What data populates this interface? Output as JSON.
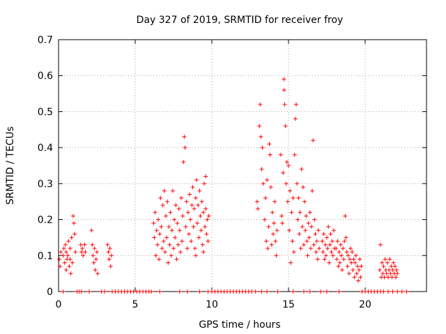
{
  "chart_data": {
    "type": "scatter",
    "title": "Day 327 of 2019, SRMTID for receiver froy",
    "xlabel": "GPS time / hours",
    "ylabel": "SRMTID / TECUs",
    "xlim": [
      0,
      24
    ],
    "ylim": [
      0,
      0.7
    ],
    "xticks": [
      0,
      5,
      10,
      15,
      20
    ],
    "xtick_labels": [
      "0",
      "5",
      "10",
      "15",
      "20"
    ],
    "yticks": [
      0,
      0.1,
      0.2,
      0.3,
      0.4,
      0.5,
      0.6,
      0.7
    ],
    "ytick_labels": [
      "0",
      "0.1",
      "0.2",
      "0.3",
      "0.4",
      "0.5",
      "0.6",
      "0.7"
    ],
    "grid": true,
    "marker": "+",
    "series": [
      {
        "name": "SRMTID",
        "color": "#ff0000",
        "points": [
          [
            0.05,
            0.09
          ],
          [
            0.1,
            0.07
          ],
          [
            0.15,
            0.11
          ],
          [
            0.3,
            0.1
          ],
          [
            0.35,
            0.12
          ],
          [
            0.4,
            0.08
          ],
          [
            0.45,
            0.13
          ],
          [
            0.5,
            0.11
          ],
          [
            0.55,
            0.09
          ],
          [
            0.6,
            0.1
          ],
          [
            0.65,
            0.14
          ],
          [
            0.7,
            0.07
          ],
          [
            0.75,
            0.12
          ],
          [
            0.8,
            0.05
          ],
          [
            0.85,
            0.15
          ],
          [
            0.9,
            0.08
          ],
          [
            0.95,
            0.21
          ],
          [
            1.0,
            0.19
          ],
          [
            1.05,
            0.16
          ],
          [
            1.1,
            0.11
          ],
          [
            0.5,
            0.06
          ],
          [
            0.75,
            0.09
          ],
          [
            1.45,
            0.13
          ],
          [
            1.5,
            0.11
          ],
          [
            1.55,
            0.12
          ],
          [
            1.6,
            0.1
          ],
          [
            1.7,
            0.13
          ],
          [
            1.75,
            0.11
          ],
          [
            2.15,
            0.17
          ],
          [
            2.2,
            0.13
          ],
          [
            2.25,
            0.1
          ],
          [
            2.3,
            0.08
          ],
          [
            2.35,
            0.12
          ],
          [
            2.4,
            0.06
          ],
          [
            2.45,
            0.09
          ],
          [
            2.5,
            0.11
          ],
          [
            2.55,
            0.05
          ],
          [
            3.2,
            0.13
          ],
          [
            3.25,
            0.11
          ],
          [
            3.3,
            0.09
          ],
          [
            3.35,
            0.12
          ],
          [
            3.4,
            0.07
          ],
          [
            3.45,
            0.1
          ],
          [
            6.2,
            0.19
          ],
          [
            6.25,
            0.15
          ],
          [
            6.3,
            0.22
          ],
          [
            6.35,
            0.1
          ],
          [
            6.4,
            0.17
          ],
          [
            6.45,
            0.13
          ],
          [
            6.5,
            0.2
          ],
          [
            6.55,
            0.09
          ],
          [
            6.6,
            0.16
          ],
          [
            6.65,
            0.26
          ],
          [
            6.7,
            0.18
          ],
          [
            6.75,
            0.12
          ],
          [
            6.8,
            0.24
          ],
          [
            6.85,
            0.14
          ],
          [
            6.9,
            0.28
          ],
          [
            6.95,
            0.11
          ],
          [
            7.0,
            0.21
          ],
          [
            7.05,
            0.15
          ],
          [
            7.1,
            0.25
          ],
          [
            7.15,
            0.08
          ],
          [
            7.2,
            0.18
          ],
          [
            7.25,
            0.13
          ],
          [
            7.3,
            0.22
          ],
          [
            7.35,
            0.1
          ],
          [
            7.4,
            0.17
          ],
          [
            7.45,
            0.28
          ],
          [
            7.5,
            0.12
          ],
          [
            7.55,
            0.2
          ],
          [
            7.6,
            0.15
          ],
          [
            7.65,
            0.24
          ],
          [
            7.7,
            0.09
          ],
          [
            7.75,
            0.19
          ],
          [
            7.8,
            0.13
          ],
          [
            7.85,
            0.23
          ],
          [
            7.9,
            0.17
          ],
          [
            7.95,
            0.11
          ],
          [
            8.0,
            0.26
          ],
          [
            8.05,
            0.14
          ],
          [
            8.1,
            0.21
          ],
          [
            8.15,
            0.36
          ],
          [
            8.2,
            0.43
          ],
          [
            8.25,
            0.4
          ],
          [
            8.3,
            0.18
          ],
          [
            8.35,
            0.25
          ],
          [
            8.4,
            0.12
          ],
          [
            8.45,
            0.22
          ],
          [
            8.5,
            0.16
          ],
          [
            8.55,
            0.27
          ],
          [
            8.6,
            0.2
          ],
          [
            8.65,
            0.14
          ],
          [
            8.7,
            0.24
          ],
          [
            8.75,
            0.29
          ],
          [
            8.8,
            0.18
          ],
          [
            8.85,
            0.23
          ],
          [
            8.9,
            0.12
          ],
          [
            8.95,
            0.26
          ],
          [
            9.0,
            0.31
          ],
          [
            9.05,
            0.19
          ],
          [
            9.1,
            0.24
          ],
          [
            9.15,
            0.15
          ],
          [
            9.2,
            0.28
          ],
          [
            9.25,
            0.21
          ],
          [
            9.3,
            0.17
          ],
          [
            9.35,
            0.25
          ],
          [
            9.4,
            0.13
          ],
          [
            9.45,
            0.22
          ],
          [
            9.5,
            0.3
          ],
          [
            9.55,
            0.18
          ],
          [
            9.6,
            0.23
          ],
          [
            9.65,
            0.16
          ],
          [
            9.7,
            0.2
          ],
          [
            9.75,
            0.14
          ],
          [
            9.8,
            0.21
          ],
          [
            8.95,
            0.1
          ],
          [
            9.45,
            0.11
          ],
          [
            9.6,
            0.32
          ],
          [
            12.95,
            0.25
          ],
          [
            13.0,
            0.23
          ],
          [
            13.1,
            0.46
          ],
          [
            13.15,
            0.52
          ],
          [
            13.2,
            0.43
          ],
          [
            13.25,
            0.34
          ],
          [
            13.3,
            0.4
          ],
          [
            13.35,
            0.3
          ],
          [
            13.45,
            0.2
          ],
          [
            13.5,
            0.26
          ],
          [
            13.55,
            0.14
          ],
          [
            13.6,
            0.31
          ],
          [
            13.65,
            0.12
          ],
          [
            13.7,
            0.18
          ],
          [
            13.75,
            0.41
          ],
          [
            13.8,
            0.38
          ],
          [
            13.85,
            0.29
          ],
          [
            13.9,
            0.13
          ],
          [
            13.95,
            0.22
          ],
          [
            14.0,
            0.16
          ],
          [
            14.05,
            0.19
          ],
          [
            14.1,
            0.25
          ],
          [
            14.15,
            0.14
          ],
          [
            14.2,
            0.1
          ],
          [
            14.25,
            0.17
          ],
          [
            14.5,
            0.38
          ],
          [
            14.55,
            0.21
          ],
          [
            14.6,
            0.19
          ],
          [
            14.65,
            0.33
          ],
          [
            14.7,
            0.59
          ],
          [
            14.72,
            0.56
          ],
          [
            14.75,
            0.52
          ],
          [
            14.8,
            0.46
          ],
          [
            14.85,
            0.3
          ],
          [
            14.9,
            0.36
          ],
          [
            14.95,
            0.25
          ],
          [
            15.0,
            0.35
          ],
          [
            15.05,
            0.17
          ],
          [
            15.1,
            0.28
          ],
          [
            15.15,
            0.08
          ],
          [
            15.2,
            0.22
          ],
          [
            15.25,
            0.14
          ],
          [
            15.3,
            0.26
          ],
          [
            15.35,
            0.11
          ],
          [
            15.4,
            0.38
          ],
          [
            15.45,
            0.48
          ],
          [
            15.5,
            0.52
          ],
          [
            15.55,
            0.3
          ],
          [
            15.6,
            0.2
          ],
          [
            15.65,
            0.26
          ],
          [
            15.7,
            0.16
          ],
          [
            15.75,
            0.22
          ],
          [
            15.8,
            0.12
          ],
          [
            15.85,
            0.34
          ],
          [
            15.9,
            0.18
          ],
          [
            15.95,
            0.29
          ],
          [
            16.0,
            0.13
          ],
          [
            16.05,
            0.25
          ],
          [
            16.1,
            0.17
          ],
          [
            16.15,
            0.21
          ],
          [
            16.2,
            0.14
          ],
          [
            16.25,
            0.1
          ],
          [
            16.3,
            0.19
          ],
          [
            16.35,
            0.15
          ],
          [
            16.4,
            0.22
          ],
          [
            16.45,
            0.12
          ],
          [
            16.5,
            0.18
          ],
          [
            16.55,
            0.28
          ],
          [
            16.6,
            0.42
          ],
          [
            16.65,
            0.13
          ],
          [
            16.7,
            0.2
          ],
          [
            16.75,
            0.16
          ],
          [
            16.8,
            0.11
          ],
          [
            16.85,
            0.14
          ],
          [
            16.9,
            0.09
          ],
          [
            16.95,
            0.17
          ],
          [
            17.0,
            0.12
          ],
          [
            17.2,
            0.14
          ],
          [
            17.25,
            0.11
          ],
          [
            17.3,
            0.16
          ],
          [
            17.35,
            0.09
          ],
          [
            17.4,
            0.13
          ],
          [
            17.45,
            0.1
          ],
          [
            17.5,
            0.15
          ],
          [
            17.55,
            0.12
          ],
          [
            17.6,
            0.18
          ],
          [
            17.65,
            0.08
          ],
          [
            17.7,
            0.13
          ],
          [
            17.75,
            0.16
          ],
          [
            17.8,
            0.11
          ],
          [
            17.85,
            0.14
          ],
          [
            17.9,
            0.1
          ],
          [
            17.95,
            0.17
          ],
          [
            18.0,
            0.12
          ],
          [
            18.1,
            0.12
          ],
          [
            18.15,
            0.09
          ],
          [
            18.2,
            0.14
          ],
          [
            18.25,
            0.07
          ],
          [
            18.3,
            0.11
          ],
          [
            18.35,
            0.08
          ],
          [
            18.4,
            0.13
          ],
          [
            18.45,
            0.1
          ],
          [
            18.5,
            0.06
          ],
          [
            18.55,
            0.12
          ],
          [
            18.6,
            0.09
          ],
          [
            18.65,
            0.14
          ],
          [
            18.7,
            0.21
          ],
          [
            18.75,
            0.15
          ],
          [
            18.8,
            0.11
          ],
          [
            18.85,
            0.07
          ],
          [
            18.9,
            0.1
          ],
          [
            18.95,
            0.05
          ],
          [
            19.0,
            0.09
          ],
          [
            19.05,
            0.12
          ],
          [
            19.1,
            0.08
          ],
          [
            19.15,
            0.11
          ],
          [
            19.2,
            0.06
          ],
          [
            19.25,
            0.09
          ],
          [
            19.3,
            0.04
          ],
          [
            19.35,
            0.08
          ],
          [
            19.4,
            0.1
          ],
          [
            19.45,
            0.05
          ],
          [
            19.5,
            0.07
          ],
          [
            19.55,
            0.03
          ],
          [
            19.6,
            0.06
          ],
          [
            19.65,
            0.09
          ],
          [
            19.7,
            0.04
          ],
          [
            19.75,
            0.07
          ],
          [
            20.95,
            0.06
          ],
          [
            21.0,
            0.13
          ],
          [
            21.05,
            0.04
          ],
          [
            21.1,
            0.08
          ],
          [
            21.15,
            0.05
          ],
          [
            21.2,
            0.07
          ],
          [
            21.25,
            0.04
          ],
          [
            21.3,
            0.09
          ],
          [
            21.35,
            0.06
          ],
          [
            21.4,
            0.05
          ],
          [
            21.45,
            0.08
          ],
          [
            21.5,
            0.04
          ],
          [
            21.55,
            0.06
          ],
          [
            21.6,
            0.09
          ],
          [
            21.65,
            0.05
          ],
          [
            21.7,
            0.07
          ],
          [
            21.75,
            0.04
          ],
          [
            21.8,
            0.06
          ],
          [
            21.85,
            0.08
          ],
          [
            21.9,
            0.05
          ],
          [
            21.95,
            0.07
          ],
          [
            22.0,
            0.04
          ],
          [
            22.05,
            0.06
          ],
          [
            22.1,
            0.05
          ]
        ],
        "zero_points": [
          0.3,
          1.2,
          1.35,
          1.5,
          2.0,
          2.8,
          3.0,
          3.5,
          3.7,
          3.9,
          4.1,
          4.3,
          4.5,
          4.7,
          4.9,
          5.1,
          5.3,
          5.5,
          5.7,
          5.9,
          6.05,
          6.6,
          7.9,
          8.4,
          9.2,
          9.75,
          10.0,
          10.2,
          10.4,
          10.6,
          10.8,
          11.0,
          11.2,
          11.4,
          11.6,
          11.8,
          12.0,
          12.2,
          12.4,
          12.6,
          12.85,
          13.25,
          13.6,
          14.3,
          15.3,
          16.0,
          16.4,
          17.1,
          17.5,
          18.3,
          19.8,
          20.0,
          20.2,
          20.4,
          20.6,
          20.8,
          21.0,
          21.2,
          21.5,
          21.8,
          22.1,
          22.4,
          22.7
        ]
      }
    ]
  }
}
